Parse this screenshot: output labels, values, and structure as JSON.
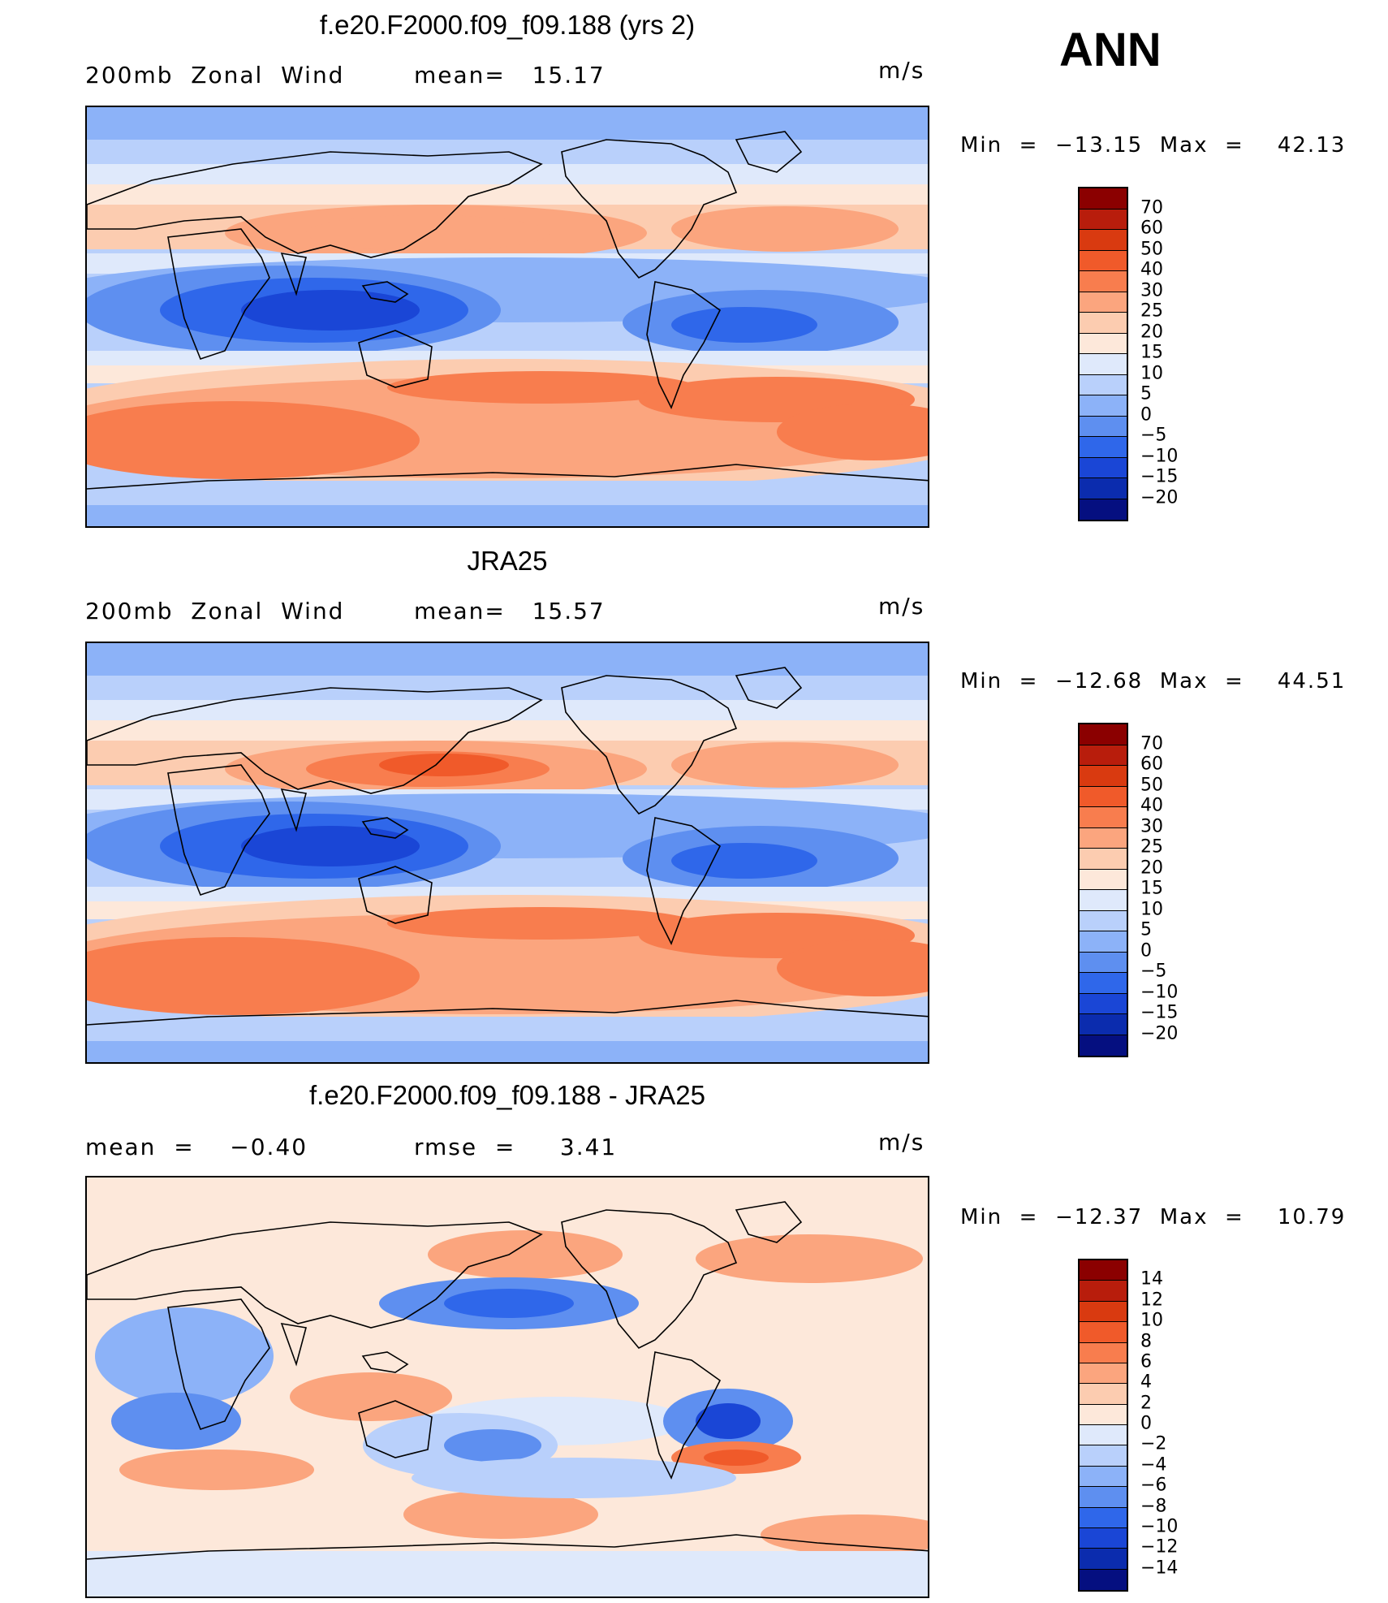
{
  "season": "ANN",
  "panels": [
    {
      "title": "f.e20.F2000.f09_f09.188 (yrs 2)",
      "left_label": "200mb  Zonal  Wind",
      "mid_label": "mean=   15.17",
      "units": "m/s",
      "minmax": "Min  =  −13.15  Max  =    42.13",
      "colorbar": {
        "labels": [
          "70",
          "60",
          "50",
          "40",
          "30",
          "25",
          "20",
          "15",
          "10",
          "5",
          "0",
          "−5",
          "−10",
          "−15",
          "−20"
        ],
        "colors": [
          "#8b0000",
          "#b81d0c",
          "#d93a10",
          "#f05a2a",
          "#f87d4e",
          "#fba57e",
          "#fcccb0",
          "#fde8da",
          "#dfe9fb",
          "#b9d0fb",
          "#8cb2f8",
          "#5e8ff0",
          "#2f67ea",
          "#1a46d6",
          "#0b2cae",
          "#050f80"
        ]
      }
    },
    {
      "title": "JRA25",
      "left_label": "200mb  Zonal  Wind",
      "mid_label": "mean=   15.57",
      "units": "m/s",
      "minmax": "Min  =  −12.68  Max  =    44.51",
      "colorbar": {
        "labels": [
          "70",
          "60",
          "50",
          "40",
          "30",
          "25",
          "20",
          "15",
          "10",
          "5",
          "0",
          "−5",
          "−10",
          "−15",
          "−20"
        ],
        "colors": [
          "#8b0000",
          "#b81d0c",
          "#d93a10",
          "#f05a2a",
          "#f87d4e",
          "#fba57e",
          "#fcccb0",
          "#fde8da",
          "#dfe9fb",
          "#b9d0fb",
          "#8cb2f8",
          "#5e8ff0",
          "#2f67ea",
          "#1a46d6",
          "#0b2cae",
          "#050f80"
        ]
      }
    },
    {
      "title": "f.e20.F2000.f09_f09.188 - JRA25",
      "left_label": "mean  =    −0.40",
      "mid_label": "rmse  =     3.41",
      "units": "m/s",
      "minmax": "Min  =  −12.37  Max  =    10.79",
      "colorbar": {
        "labels": [
          "14",
          "12",
          "10",
          "8",
          "6",
          "4",
          "2",
          "0",
          "−2",
          "−4",
          "−6",
          "−8",
          "−10",
          "−12",
          "−14"
        ],
        "colors": [
          "#8b0000",
          "#b81d0c",
          "#d93a10",
          "#f05a2a",
          "#f87d4e",
          "#fba57e",
          "#fcccb0",
          "#fde8da",
          "#dfe9fb",
          "#b9d0fb",
          "#8cb2f8",
          "#5e8ff0",
          "#2f67ea",
          "#1a46d6",
          "#0b2cae",
          "#050f80"
        ]
      }
    }
  ]
}
